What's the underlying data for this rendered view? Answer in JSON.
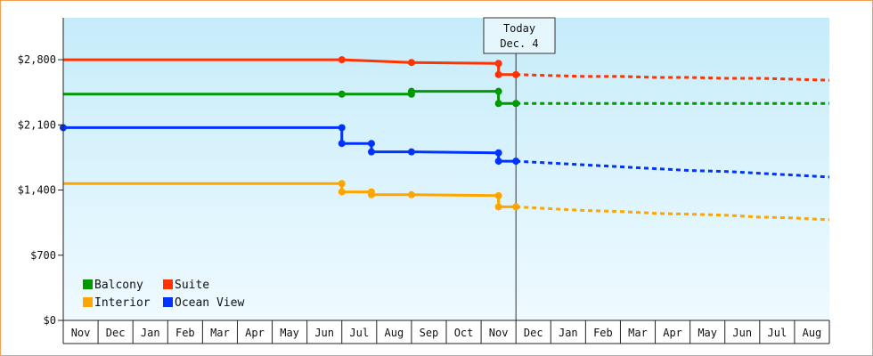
{
  "chart_data": {
    "type": "line",
    "title": "",
    "xlabel": "",
    "ylabel": "",
    "ylim": [
      0,
      3250
    ],
    "yticks": [
      0,
      700,
      1400,
      2100,
      2800
    ],
    "ytick_labels": [
      "$0",
      "$700",
      "$1,400",
      "$2,100",
      "$2,800"
    ],
    "months": [
      "Nov",
      "Dec",
      "Jan",
      "Feb",
      "Mar",
      "Apr",
      "May",
      "Jun",
      "Jul",
      "Aug",
      "Sep",
      "Oct",
      "Nov",
      "Dec",
      "Jan",
      "Feb",
      "Mar",
      "Apr",
      "May",
      "Jun",
      "Jul",
      "Aug"
    ],
    "xlim": [
      0,
      22
    ],
    "today": {
      "x": 13.0,
      "line1": "Today",
      "line2": "Dec. 4"
    },
    "grid": false,
    "legend_position": "bottom-left",
    "series": [
      {
        "name": "Suite",
        "color": "#ff3300",
        "historical": [
          [
            0.0,
            2800
          ],
          [
            8.0,
            2800
          ],
          [
            10.0,
            2770
          ],
          [
            12.5,
            2760
          ],
          [
            12.5,
            2640
          ],
          [
            13.0,
            2640
          ]
        ],
        "forecast": [
          [
            13.0,
            2640
          ],
          [
            14.0,
            2630
          ],
          [
            15.0,
            2620
          ],
          [
            16.0,
            2620
          ],
          [
            17.0,
            2610
          ],
          [
            18.0,
            2610
          ],
          [
            19.0,
            2600
          ],
          [
            20.0,
            2600
          ],
          [
            21.0,
            2590
          ],
          [
            22.0,
            2580
          ]
        ],
        "markers": [
          [
            8.0,
            2800
          ],
          [
            10.0,
            2770
          ],
          [
            12.5,
            2760
          ],
          [
            12.5,
            2640
          ],
          [
            13.0,
            2640
          ]
        ]
      },
      {
        "name": "Balcony",
        "color": "#009900",
        "historical": [
          [
            0.0,
            2430
          ],
          [
            8.0,
            2430
          ],
          [
            10.0,
            2430
          ],
          [
            10.0,
            2460
          ],
          [
            12.5,
            2460
          ],
          [
            12.5,
            2330
          ],
          [
            13.0,
            2330
          ]
        ],
        "forecast": [
          [
            13.0,
            2330
          ],
          [
            22.0,
            2330
          ]
        ],
        "markers": [
          [
            8.0,
            2430
          ],
          [
            10.0,
            2430
          ],
          [
            10.0,
            2460
          ],
          [
            12.5,
            2460
          ],
          [
            12.5,
            2330
          ],
          [
            13.0,
            2330
          ]
        ]
      },
      {
        "name": "Ocean View",
        "color": "#0033ff",
        "historical": [
          [
            0.0,
            2070
          ],
          [
            8.0,
            2070
          ],
          [
            8.0,
            1900
          ],
          [
            8.85,
            1900
          ],
          [
            8.85,
            1810
          ],
          [
            10.0,
            1810
          ],
          [
            12.5,
            1800
          ],
          [
            12.5,
            1710
          ],
          [
            13.0,
            1710
          ]
        ],
        "forecast": [
          [
            13.0,
            1710
          ],
          [
            14.0,
            1690
          ],
          [
            15.0,
            1670
          ],
          [
            16.0,
            1650
          ],
          [
            17.0,
            1630
          ],
          [
            18.0,
            1610
          ],
          [
            19.0,
            1600
          ],
          [
            20.0,
            1580
          ],
          [
            21.0,
            1560
          ],
          [
            22.0,
            1540
          ]
        ],
        "markers": [
          [
            0.0,
            2070
          ],
          [
            8.0,
            2070
          ],
          [
            8.0,
            1900
          ],
          [
            8.85,
            1900
          ],
          [
            8.85,
            1810
          ],
          [
            10.0,
            1810
          ],
          [
            12.5,
            1800
          ],
          [
            12.5,
            1710
          ],
          [
            13.0,
            1710
          ]
        ]
      },
      {
        "name": "Interior",
        "color": "#ffa500",
        "historical": [
          [
            0.0,
            1470
          ],
          [
            8.0,
            1470
          ],
          [
            8.0,
            1380
          ],
          [
            8.85,
            1380
          ],
          [
            8.85,
            1350
          ],
          [
            10.0,
            1350
          ],
          [
            12.5,
            1340
          ],
          [
            12.5,
            1220
          ],
          [
            13.0,
            1220
          ]
        ],
        "forecast": [
          [
            13.0,
            1220
          ],
          [
            14.0,
            1200
          ],
          [
            15.0,
            1180
          ],
          [
            16.0,
            1170
          ],
          [
            17.0,
            1150
          ],
          [
            18.0,
            1140
          ],
          [
            19.0,
            1130
          ],
          [
            20.0,
            1110
          ],
          [
            21.0,
            1100
          ],
          [
            22.0,
            1080
          ]
        ],
        "markers": [
          [
            8.0,
            1470
          ],
          [
            8.0,
            1380
          ],
          [
            8.85,
            1380
          ],
          [
            8.85,
            1350
          ],
          [
            10.0,
            1350
          ],
          [
            12.5,
            1340
          ],
          [
            12.5,
            1220
          ],
          [
            13.0,
            1220
          ]
        ]
      }
    ],
    "legend": [
      {
        "name": "Balcony",
        "color": "#009900"
      },
      {
        "name": "Suite",
        "color": "#ff3300"
      },
      {
        "name": "Interior",
        "color": "#ffa500"
      },
      {
        "name": "Ocean View",
        "color": "#0033ff"
      }
    ]
  }
}
